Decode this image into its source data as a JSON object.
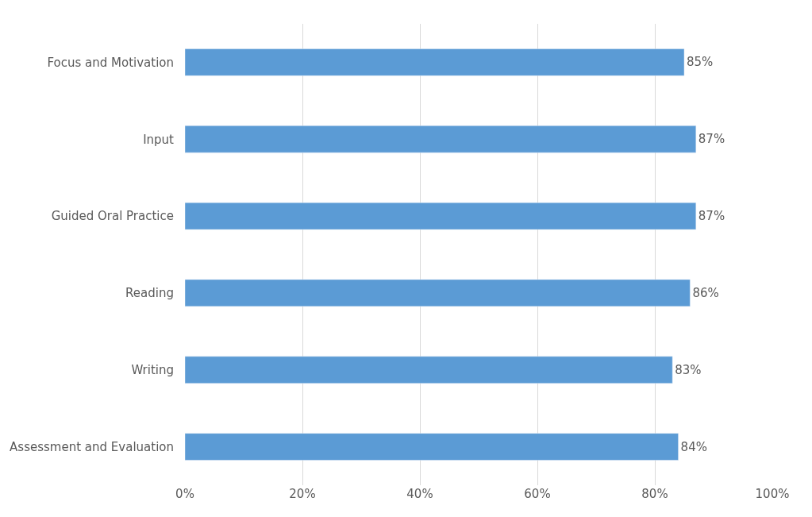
{
  "chart_data": {
    "type": "bar",
    "orientation": "horizontal",
    "categories": [
      "Focus and Motivation",
      "Input",
      "Guided Oral Practice",
      "Reading",
      "Writing",
      "Assessment and Evaluation"
    ],
    "values": [
      85,
      87,
      87,
      86,
      83,
      84
    ],
    "value_labels": [
      "85%",
      "87%",
      "87%",
      "86%",
      "83%",
      "84%"
    ],
    "color": "#5b9bd5",
    "xlim": [
      0,
      100
    ],
    "xticks": [
      {
        "value": 0,
        "label": "0%"
      },
      {
        "value": 20,
        "label": "20%"
      },
      {
        "value": 40,
        "label": "40%"
      },
      {
        "value": 60,
        "label": "60%"
      },
      {
        "value": 80,
        "label": "80%"
      },
      {
        "value": 100,
        "label": "100%"
      }
    ],
    "grid": "x"
  }
}
